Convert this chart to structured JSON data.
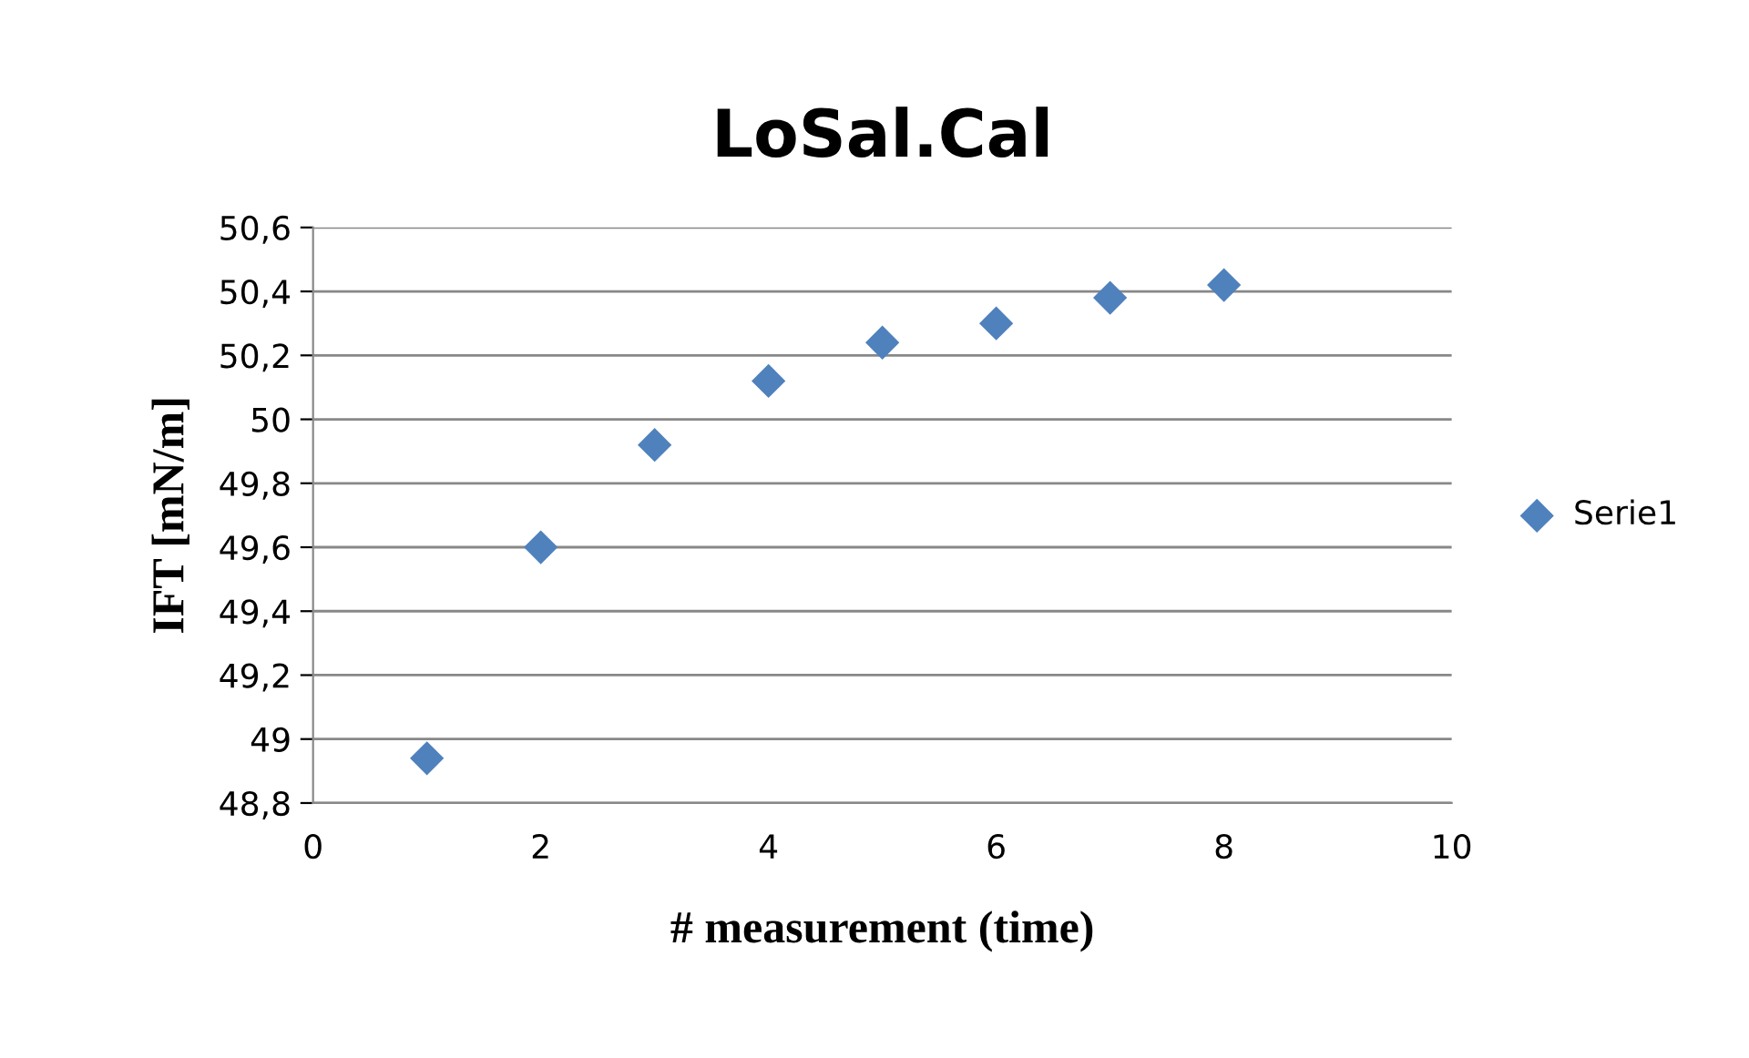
{
  "chart_data": {
    "type": "scatter",
    "title": "LoSal.Cal",
    "xlabel": "# measurement (time)",
    "ylabel": "IFT [mN/m]",
    "x": [
      1,
      2,
      3,
      4,
      5,
      6,
      7,
      8
    ],
    "series": [
      {
        "name": "Serie1",
        "color": "#4f81bd",
        "values": [
          48.94,
          49.6,
          49.92,
          50.12,
          50.24,
          50.3,
          50.38,
          50.42
        ]
      }
    ],
    "xlim": [
      0,
      10
    ],
    "xticks": [
      0,
      2,
      4,
      6,
      8,
      10
    ],
    "ylim": [
      48.8,
      50.6
    ],
    "yticks": [
      {
        "value": 48.8,
        "label": "48,8"
      },
      {
        "value": 49,
        "label": "49"
      },
      {
        "value": 49.2,
        "label": "49,2"
      },
      {
        "value": 49.4,
        "label": "49,4"
      },
      {
        "value": 49.6,
        "label": "49,6"
      },
      {
        "value": 49.8,
        "label": "49,8"
      },
      {
        "value": 50,
        "label": "50"
      },
      {
        "value": 50.2,
        "label": "50,2"
      },
      {
        "value": 50.4,
        "label": "50,4"
      },
      {
        "value": 50.6,
        "label": "50,6"
      }
    ],
    "grid": "y",
    "legend": "right",
    "marker": "diamond"
  }
}
